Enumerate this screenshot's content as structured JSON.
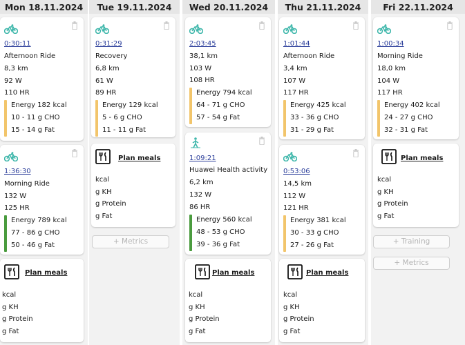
{
  "colors": {
    "energy_yellow": "#f2c56b",
    "energy_green": "#4a9b3e",
    "bike_teal": "#3fb7ab",
    "link_blue": "#2a3d9a"
  },
  "days": [
    {
      "header": "Mon 18.11.2024",
      "cards": [
        {
          "icon": "bike-icon",
          "duration": "0:30:11",
          "title": "Afternoon Ride",
          "distance": "8,3 km",
          "power": "92 W",
          "hr": "110 HR",
          "energy": "Energy 182 kcal",
          "cho": "10 - 11 g CHO",
          "fat": "15 - 14 g Fat",
          "bar": "yellow"
        },
        {
          "icon": "bike-icon",
          "duration": "1:36:30",
          "title": "Morning Ride",
          "power": "132 W",
          "hr": "125 HR",
          "energy": "Energy 789 kcal",
          "cho": "77 - 86 g CHO",
          "fat": "50 - 46 g Fat",
          "bar": "green"
        }
      ],
      "meal": {
        "title": "Plan meals",
        "kcal": "kcal",
        "kh": "g KH",
        "protein": "g Protein",
        "fat": "g Fat"
      }
    },
    {
      "header": "Tue 19.11.2024",
      "cards": [
        {
          "icon": "bike-icon",
          "duration": "0:31:29",
          "title": "Recovery",
          "distance": "6,8 km",
          "power": "61 W",
          "hr": "89 HR",
          "energy": "Energy 129 kcal",
          "cho": "5 - 6 g CHO",
          "fat": "11 - 11 g Fat",
          "bar": "yellow"
        }
      ],
      "meal": {
        "title": "Plan meals",
        "kcal": "kcal",
        "kh": "g KH",
        "protein": "g Protein",
        "fat": "g Fat"
      },
      "metrics_button": "+ Metrics"
    },
    {
      "header": "Wed 20.11.2024",
      "cards": [
        {
          "icon": "bike-icon",
          "duration": "2:03:45",
          "distance": "38,1 km",
          "power": "103 W",
          "hr": "108 HR",
          "energy": "Energy 794 kcal",
          "cho": "64 - 71 g CHO",
          "fat": "57 - 54 g Fat",
          "bar": "yellow"
        },
        {
          "icon": "activity-person-icon",
          "duration": "1:09:21",
          "title": "Huawei Health activity",
          "distance": "6,2 km",
          "power": "132 W",
          "hr": "86 HR",
          "energy": "Energy 560 kcal",
          "cho": "48 - 53 g CHO",
          "fat": "39 - 36 g Fat",
          "bar": "green"
        }
      ],
      "meal": {
        "title": "Plan meals",
        "kcal": "kcal",
        "kh": "g KH",
        "protein": "g Protein",
        "fat": "g Fat"
      }
    },
    {
      "header": "Thu 21.11.2024",
      "cards": [
        {
          "icon": "bike-icon",
          "duration": "1:01:44",
          "title": "Afternoon Ride",
          "distance": "3,4 km",
          "power": "107 W",
          "hr": "117 HR",
          "energy": "Energy 425 kcal",
          "cho": "33 - 36 g CHO",
          "fat": "31 - 29 g Fat",
          "bar": "yellow"
        },
        {
          "icon": "bike-icon",
          "duration": "0:53:06",
          "distance": "14,5 km",
          "power": "112 W",
          "hr": "121 HR",
          "energy": "Energy 381 kcal",
          "cho": "30 - 33 g CHO",
          "fat": "27 - 26 g Fat",
          "bar": "yellow"
        }
      ],
      "meal": {
        "title": "Plan meals",
        "kcal": "kcal",
        "kh": "g KH",
        "protein": "g Protein",
        "fat": "g Fat"
      }
    },
    {
      "header": "Fri 22.11.2024",
      "cards": [
        {
          "icon": "bike-icon",
          "duration": "1:00:34",
          "title": "Morning Ride",
          "distance": "18,0 km",
          "power": "104 W",
          "hr": "117 HR",
          "energy": "Energy 402 kcal",
          "cho": "24 - 27 g CHO",
          "fat": "32 - 31 g Fat",
          "bar": "yellow"
        }
      ],
      "meal": {
        "title": "Plan meals",
        "kcal": "kcal",
        "kh": "g KH",
        "protein": "g Protein",
        "fat": "g Fat"
      },
      "training_button": "+ Training",
      "metrics_button": "+ Metrics"
    }
  ]
}
